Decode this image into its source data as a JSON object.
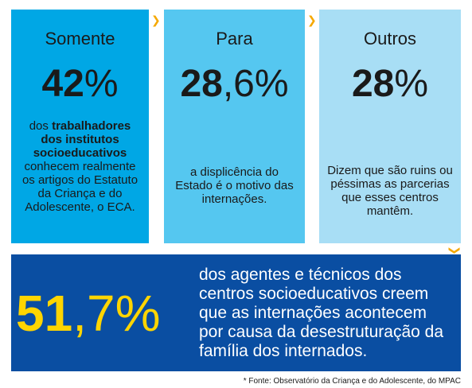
{
  "cards": [
    {
      "heading": "Somente",
      "big_number": "42",
      "big_suffix": "%",
      "desc_prefix": "dos ",
      "desc_bold": "trabalhadores dos institutos socioeducativos",
      "desc_rest": " conhecem realmente os artigos do Estatuto da Criança e do Adolescente, o ECA."
    },
    {
      "heading": "Para",
      "big_number": "28",
      "big_suffix": ",6%",
      "desc": "a displicência do Estado é o motivo das internações."
    },
    {
      "heading": "Outros",
      "big_number": "28",
      "big_suffix": "%",
      "desc": "Dizem que são ruins ou péssimas as parcerias que esses centros mantêm."
    }
  ],
  "banner": {
    "big_number": "51",
    "big_suffix": ",7%",
    "text": "dos agentes e técnicos dos centros socioeducativos creem que as internações acontecem por causa da desestruturação da família dos internados."
  },
  "source": "* Fonte: Observatório da Criança e do Adolescente, do MPAC",
  "colors": {
    "card1": "#00a7e5",
    "card2": "#55c7f0",
    "card3": "#a8def5",
    "banner": "#0a4ea2",
    "accent": "#ffd500",
    "arrow": "#f5a800"
  },
  "icons": [
    "chevron-right-icon",
    "chevron-right-icon",
    "chevron-down-icon"
  ]
}
